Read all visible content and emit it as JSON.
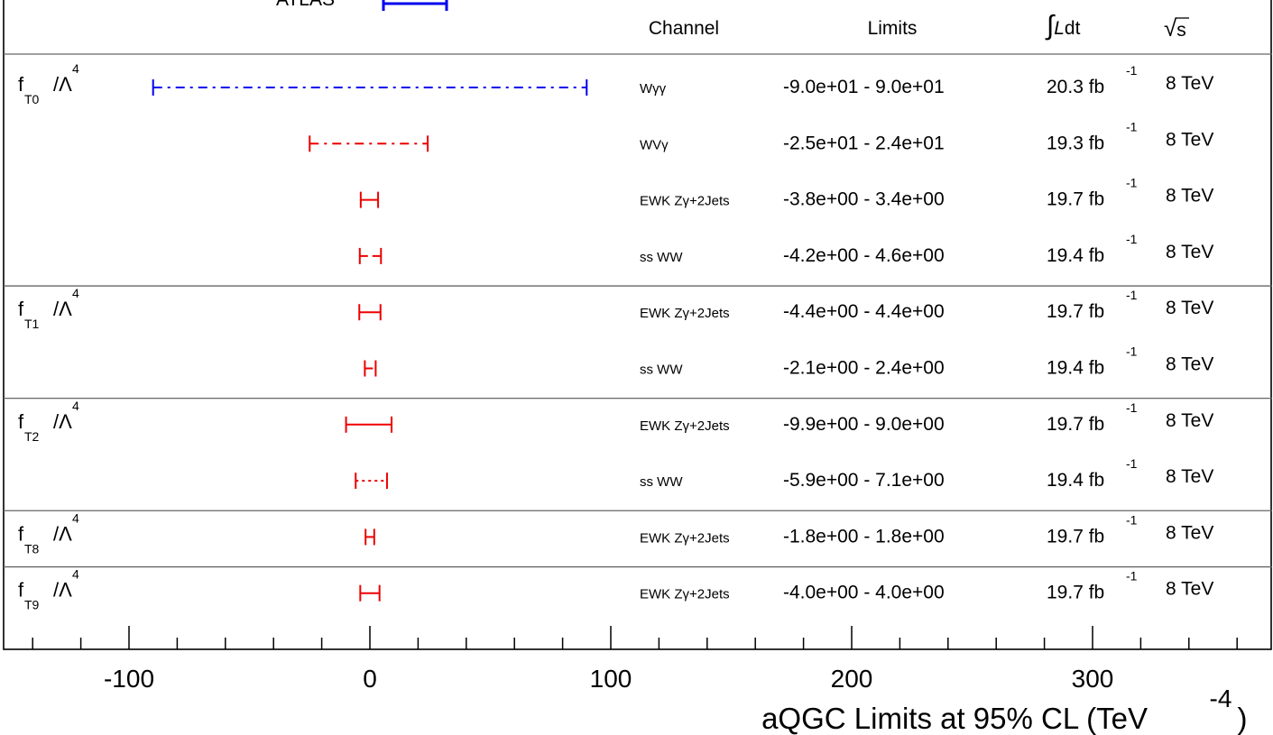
{
  "chart_data": {
    "type": "interval",
    "title": "ATLAS",
    "xlabel": "aQGC Limits at 95% CL (TeV",
    "xlabel_exponent": "-4",
    "xlabel_close": ")",
    "xlim": [
      -150,
      375
    ],
    "xticks": [
      "-100",
      "0",
      "100",
      "200",
      "300"
    ],
    "xtick_values": [
      -100,
      0,
      100,
      200,
      300
    ],
    "headers": {
      "channel": "Channel",
      "limits": "Limits",
      "lumi_integral": "∫",
      "lumi_L": "L",
      "lumi_dt": "dt",
      "energy_sqrt": "√",
      "energy_s": "s"
    },
    "lumi_unit": "fb",
    "lumi_exp": "-1",
    "groups": [
      {
        "param": {
          "f": "f",
          "sub": "T0",
          "div": "/Λ",
          "sup": "4"
        },
        "rows": [
          {
            "channel": "Wγγ",
            "low": -90,
            "high": 90,
            "limits": "-9.0e+01 - 9.0e+01",
            "lumi": "20.3",
            "energy": "8 TeV",
            "color": "#0000ee",
            "style": "dashdot"
          },
          {
            "channel": "WVγ",
            "low": -25,
            "high": 24,
            "limits": "-2.5e+01 - 2.4e+01",
            "lumi": "19.3",
            "energy": "8 TeV",
            "color": "#ee0000",
            "style": "dashdot"
          },
          {
            "channel": "EWK Zγ+2Jets",
            "low": -3.8,
            "high": 3.4,
            "limits": "-3.8e+00 - 3.4e+00",
            "lumi": "19.7",
            "energy": "8 TeV",
            "color": "#ee0000",
            "style": "solid"
          },
          {
            "channel": "ss WW",
            "low": -4.2,
            "high": 4.6,
            "limits": "-4.2e+00 - 4.6e+00",
            "lumi": "19.4",
            "energy": "8 TeV",
            "color": "#ee0000",
            "style": "dashed"
          }
        ]
      },
      {
        "param": {
          "f": "f",
          "sub": "T1",
          "div": "/Λ",
          "sup": "4"
        },
        "rows": [
          {
            "channel": "EWK Zγ+2Jets",
            "low": -4.4,
            "high": 4.4,
            "limits": "-4.4e+00 - 4.4e+00",
            "lumi": "19.7",
            "energy": "8 TeV",
            "color": "#ee0000",
            "style": "solid"
          },
          {
            "channel": "ss WW",
            "low": -2.1,
            "high": 2.4,
            "limits": "-2.1e+00 - 2.4e+00",
            "lumi": "19.4",
            "energy": "8 TeV",
            "color": "#ee0000",
            "style": "dashed"
          }
        ]
      },
      {
        "param": {
          "f": "f",
          "sub": "T2",
          "div": "/Λ",
          "sup": "4"
        },
        "rows": [
          {
            "channel": "EWK Zγ+2Jets",
            "low": -9.9,
            "high": 9.0,
            "limits": "-9.9e+00 - 9.0e+00",
            "lumi": "19.7",
            "energy": "8 TeV",
            "color": "#ee0000",
            "style": "solid"
          },
          {
            "channel": "ss WW",
            "low": -5.9,
            "high": 7.1,
            "limits": "-5.9e+00 - 7.1e+00",
            "lumi": "19.4",
            "energy": "8 TeV",
            "color": "#ee0000",
            "style": "dotted"
          }
        ]
      },
      {
        "param": {
          "f": "f",
          "sub": "T8",
          "div": "/Λ",
          "sup": "4"
        },
        "rows": [
          {
            "channel": "EWK Zγ+2Jets",
            "low": -1.8,
            "high": 1.8,
            "limits": "-1.8e+00 - 1.8e+00",
            "lumi": "19.7",
            "energy": "8 TeV",
            "color": "#ee0000",
            "style": "solid"
          }
        ]
      },
      {
        "param": {
          "f": "f",
          "sub": "T9",
          "div": "/Λ",
          "sup": "4"
        },
        "rows": [
          {
            "channel": "EWK Zγ+2Jets",
            "low": -4.0,
            "high": 4.0,
            "limits": "-4.0e+00 - 4.0e+00",
            "lumi": "19.7",
            "energy": "8 TeV",
            "color": "#ee0000",
            "style": "solid"
          }
        ]
      }
    ]
  }
}
